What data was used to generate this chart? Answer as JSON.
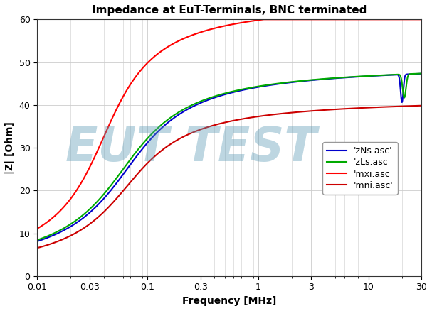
{
  "title": "Impedance at EuT-Terminals, BNC terminated",
  "xlabel": "Frequency [MHz]",
  "ylabel": "|Z| [Ohm]",
  "xlim": [
    0.01,
    30
  ],
  "ylim": [
    0,
    60
  ],
  "yticks": [
    0,
    10,
    20,
    30,
    40,
    50,
    60
  ],
  "xticks": [
    0.01,
    0.03,
    0.1,
    0.3,
    1,
    3,
    10,
    30
  ],
  "watermark_text": "EUT TEST",
  "watermark_color": "#5b9ab5",
  "watermark_alpha": 0.4,
  "background_color": "#ffffff",
  "legend_entries": [
    "'zNs.asc'",
    "'zLs.asc'",
    "'mxi.asc'",
    "'mni.asc'"
  ],
  "line_zNs_color": "#0000cc",
  "line_zLs_color": "#00aa00",
  "line_mxi_color": "#ff0000",
  "line_mni_color": "#cc0000",
  "grid_color": "#cccccc",
  "title_fontsize": 11,
  "axis_fontsize": 10,
  "legend_fontsize": 9
}
